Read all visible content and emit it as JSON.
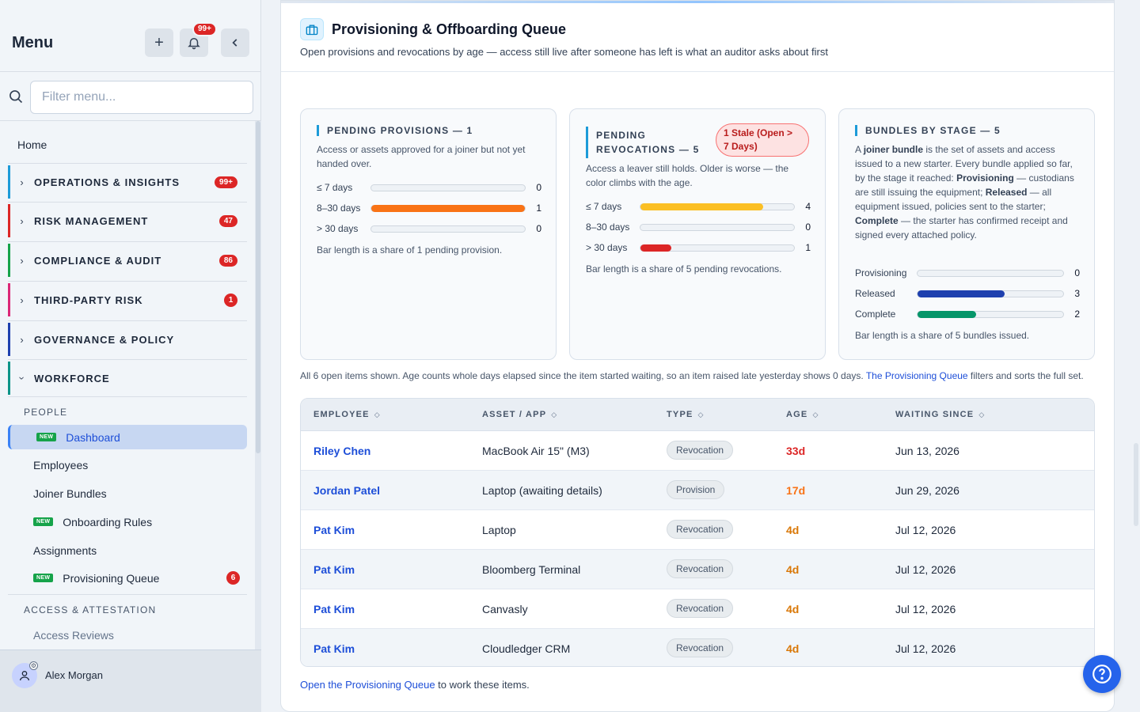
{
  "sidebar": {
    "title": "Menu",
    "notif_badge": "99+",
    "search_placeholder": "Filter menu...",
    "home": "Home",
    "sections": [
      {
        "label": "OPERATIONS & INSIGHTS",
        "badge": "99+",
        "color": "#1d9bd8"
      },
      {
        "label": "RISK MANAGEMENT",
        "badge": "47",
        "color": "#dc2626"
      },
      {
        "label": "COMPLIANCE & AUDIT",
        "badge": "86",
        "color": "#16a34a"
      },
      {
        "label": "THIRD-PARTY RISK",
        "badge": "1",
        "color": "#db2777"
      },
      {
        "label": "GOVERNANCE & POLICY",
        "badge": "",
        "color": "#1e40af"
      },
      {
        "label": "WORKFORCE",
        "badge": "",
        "color": "#0d9488"
      }
    ],
    "group_people": "PEOPLE",
    "items": [
      {
        "label": "Dashboard",
        "new": "NEW"
      },
      {
        "label": "Employees"
      },
      {
        "label": "Joiner Bundles"
      },
      {
        "label": "Onboarding Rules",
        "new": "NEW"
      },
      {
        "label": "Assignments"
      },
      {
        "label": "Provisioning Queue",
        "new": "NEW",
        "badge": "6"
      }
    ],
    "group_access": "ACCESS & ATTESTATION",
    "access_reviews": "Access Reviews",
    "user": "Alex Morgan"
  },
  "main": {
    "title": "Provisioning & Offboarding Queue",
    "subtitle": "Open provisions and revocations by age — access still live after someone has left is what an auditor asks about first",
    "cards": {
      "provisions": {
        "title": "PENDING PROVISIONS — 1",
        "desc": "Access or assets approved for a joiner but not yet handed over.",
        "bars": [
          {
            "label": "≤ 7 days",
            "value": 0,
            "share": 0
          },
          {
            "label": "8–30 days",
            "value": 1,
            "share": 1
          },
          {
            "label": "> 30 days",
            "value": 0,
            "share": 0
          }
        ],
        "note": "Bar length is a share of 1 pending provision."
      },
      "revocations": {
        "title_a": "PENDING",
        "title_b": "REVOCATIONS — 5",
        "stale_a": "1 Stale (Open >",
        "stale_b": "7 Days)",
        "desc": "Access a leaver still holds. Older is worse — the color climbs with the age.",
        "bars": [
          {
            "label": "≤ 7 days",
            "value": 4,
            "share": 0.8
          },
          {
            "label": "8–30 days",
            "value": 0,
            "share": 0
          },
          {
            "label": "> 30 days",
            "value": 1,
            "share": 0.2
          }
        ],
        "note": "Bar length is a share of 5 pending revocations."
      },
      "bundles": {
        "title": "BUNDLES BY STAGE — 5",
        "desc_parts": [
          "A ",
          "joiner bundle",
          " is the set of assets and access issued to a new starter. Every bundle applied so far, by the stage it reached: ",
          "Provisioning",
          " — custodians are still issuing the equipment; ",
          "Released",
          " — all equipment issued, policies sent to the starter; ",
          "Complete",
          " — the starter has confirmed receipt and signed every attached policy."
        ],
        "bars": [
          {
            "label": "Provisioning",
            "value": 0,
            "share": 0
          },
          {
            "label": "Released",
            "value": 3,
            "share": 0.6
          },
          {
            "label": "Complete",
            "value": 2,
            "share": 0.4
          }
        ],
        "note": "Bar length is a share of 5 bundles issued."
      }
    },
    "info_text": "All 6 open items shown. Age counts whole days elapsed since the item started waiting, so an item raised late yesterday shows 0 days. ",
    "info_link": "The Provisioning Queue",
    "info_tail": " filters and sorts the full set.",
    "table": {
      "headers": [
        "EMPLOYEE",
        "ASSET / APP",
        "TYPE",
        "AGE",
        "WAITING SINCE"
      ],
      "rows": [
        {
          "employee": "Riley Chen",
          "asset": "MacBook Air 15\" (M3)",
          "type": "Revocation",
          "age": "33d",
          "age_color": "#dc2626",
          "since": "Jun 13, 2026"
        },
        {
          "employee": "Jordan Patel",
          "asset": "Laptop (awaiting details)",
          "type": "Provision",
          "age": "17d",
          "age_color": "#f97316",
          "since": "Jun 29, 2026"
        },
        {
          "employee": "Pat Kim",
          "asset": "Laptop",
          "type": "Revocation",
          "age": "4d",
          "age_color": "#d97706",
          "since": "Jul 12, 2026"
        },
        {
          "employee": "Pat Kim",
          "asset": "Bloomberg Terminal",
          "type": "Revocation",
          "age": "4d",
          "age_color": "#d97706",
          "since": "Jul 12, 2026"
        },
        {
          "employee": "Pat Kim",
          "asset": "Canvasly",
          "type": "Revocation",
          "age": "4d",
          "age_color": "#d97706",
          "since": "Jul 12, 2026"
        },
        {
          "employee": "Pat Kim",
          "asset": "Cloudledger CRM",
          "type": "Revocation",
          "age": "4d",
          "age_color": "#d97706",
          "since": "Jul 12, 2026"
        }
      ]
    },
    "foot_link": "Open the Provisioning Queue",
    "foot_tail": " to work these items.",
    "colors": {
      "provision_bar": "#f97316",
      "revoke_recent": "#fbbf24",
      "revoke_mid": "#f97316",
      "revoke_old": "#dc2626",
      "released": "#1e40af",
      "complete": "#059669"
    }
  }
}
